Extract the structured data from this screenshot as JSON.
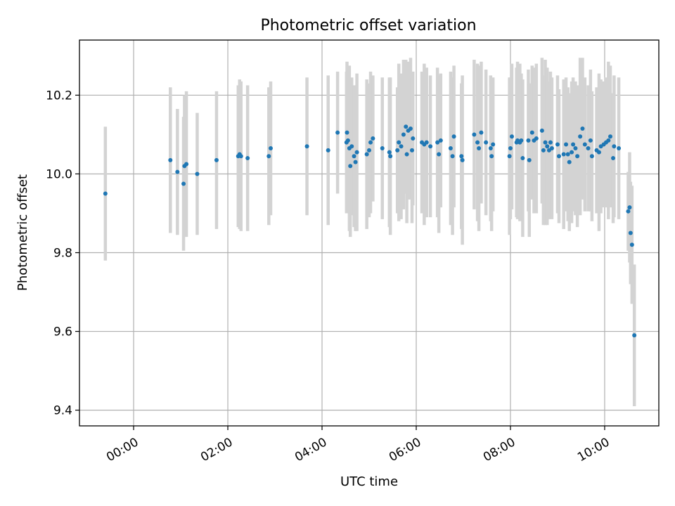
{
  "chart_data": {
    "type": "scatter",
    "title": "Photometric offset variation",
    "xlabel": "UTC time",
    "ylabel": "Photometric offset",
    "xlim": [
      -1.15,
      11.15
    ],
    "ylim": [
      9.36,
      10.34
    ],
    "xticks": [
      0,
      2,
      4,
      6,
      8,
      10
    ],
    "xtick_labels": [
      "00:00",
      "02:00",
      "04:00",
      "06:00",
      "08:00",
      "10:00"
    ],
    "yticks": [
      9.4,
      9.6,
      9.8,
      10.0,
      10.2
    ],
    "ytick_labels": [
      "9.4",
      "9.6",
      "9.8",
      "10.0",
      "10.2"
    ],
    "grid": true,
    "colors": {
      "point": "#1f77b4",
      "errorbar": "#d3d3d3",
      "grid": "#b0b0b0"
    },
    "series": [
      {
        "name": "offset",
        "x": [
          -0.6,
          0.78,
          0.93,
          1.06,
          1.08,
          1.12,
          1.35,
          1.76,
          2.22,
          2.25,
          2.28,
          2.42,
          2.87,
          2.91,
          3.68,
          4.13,
          4.33,
          4.52,
          4.53,
          4.55,
          4.58,
          4.6,
          4.63,
          4.68,
          4.71,
          4.74,
          4.95,
          5.0,
          5.03,
          5.08,
          5.28,
          5.43,
          5.45,
          5.6,
          5.63,
          5.68,
          5.73,
          5.78,
          5.8,
          5.83,
          5.88,
          5.91,
          5.93,
          6.12,
          6.17,
          6.22,
          6.3,
          6.45,
          6.48,
          6.52,
          6.73,
          6.77,
          6.8,
          6.96,
          6.98,
          7.23,
          7.3,
          7.33,
          7.38,
          7.48,
          7.58,
          7.6,
          7.63,
          7.98,
          8.0,
          8.03,
          8.13,
          8.15,
          8.2,
          8.23,
          8.26,
          8.38,
          8.4,
          8.46,
          8.5,
          8.55,
          8.67,
          8.7,
          8.74,
          8.78,
          8.82,
          8.85,
          8.88,
          9.0,
          9.03,
          9.13,
          9.18,
          9.22,
          9.25,
          9.3,
          9.33,
          9.38,
          9.42,
          9.48,
          9.53,
          9.58,
          9.65,
          9.7,
          9.73,
          9.83,
          9.88,
          9.92,
          9.98,
          10.03,
          10.08,
          10.12,
          10.18,
          10.2,
          10.3,
          10.5,
          10.53,
          10.55,
          10.58,
          10.63
        ],
        "y": [
          9.95,
          10.035,
          10.005,
          9.975,
          10.02,
          10.025,
          10.0,
          10.035,
          10.045,
          10.05,
          10.045,
          10.04,
          10.045,
          10.065,
          10.07,
          10.06,
          10.105,
          10.08,
          10.105,
          10.085,
          10.065,
          10.02,
          10.07,
          10.045,
          10.03,
          10.055,
          10.05,
          10.06,
          10.08,
          10.09,
          10.065,
          10.055,
          10.045,
          10.06,
          10.08,
          10.07,
          10.1,
          10.12,
          10.05,
          10.11,
          10.115,
          10.06,
          10.09,
          10.08,
          10.075,
          10.08,
          10.07,
          10.08,
          10.05,
          10.085,
          10.065,
          10.045,
          10.095,
          10.045,
          10.035,
          10.1,
          10.08,
          10.065,
          10.105,
          10.08,
          10.065,
          10.045,
          10.075,
          10.045,
          10.065,
          10.095,
          10.08,
          10.085,
          10.08,
          10.085,
          10.04,
          10.085,
          10.035,
          10.105,
          10.085,
          10.09,
          10.11,
          10.06,
          10.08,
          10.07,
          10.06,
          10.08,
          10.065,
          10.075,
          10.045,
          10.05,
          10.075,
          10.05,
          10.03,
          10.055,
          10.075,
          10.065,
          10.045,
          10.095,
          10.115,
          10.075,
          10.065,
          10.085,
          10.045,
          10.06,
          10.055,
          10.07,
          10.075,
          10.08,
          10.085,
          10.095,
          10.04,
          10.07,
          10.065,
          9.905,
          9.915,
          9.85,
          9.82,
          9.59
        ],
        "yerr": [
          0.17,
          0.185,
          0.16,
          0.17,
          0.18,
          0.185,
          0.155,
          0.175,
          0.18,
          0.19,
          0.19,
          0.185,
          0.175,
          0.17,
          0.175,
          0.19,
          0.155,
          0.18,
          0.18,
          0.175,
          0.21,
          0.18,
          0.175,
          0.18,
          0.175,
          0.2,
          0.19,
          0.17,
          0.18,
          0.16,
          0.18,
          0.19,
          0.2,
          0.16,
          0.2,
          0.185,
          0.19,
          0.17,
          0.175,
          0.175,
          0.18,
          0.185,
          0.17,
          0.18,
          0.205,
          0.19,
          0.18,
          0.19,
          0.2,
          0.17,
          0.195,
          0.2,
          0.18,
          0.185,
          0.215,
          0.19,
          0.2,
          0.21,
          0.18,
          0.185,
          0.185,
          0.19,
          0.17,
          0.2,
          0.18,
          0.185,
          0.19,
          0.2,
          0.2,
          0.17,
          0.2,
          0.18,
          0.195,
          0.17,
          0.185,
          0.19,
          0.185,
          0.19,
          0.21,
          0.2,
          0.175,
          0.18,
          0.18,
          0.175,
          0.17,
          0.19,
          0.17,
          0.17,
          0.175,
          0.18,
          0.17,
          0.17,
          0.18,
          0.2,
          0.18,
          0.17,
          0.16,
          0.18,
          0.165,
          0.16,
          0.2,
          0.17,
          0.16,
          0.165,
          0.2,
          0.18,
          0.165,
          0.18,
          0.18,
          0.1,
          0.14,
          0.13,
          0.15,
          0.18
        ]
      }
    ]
  }
}
